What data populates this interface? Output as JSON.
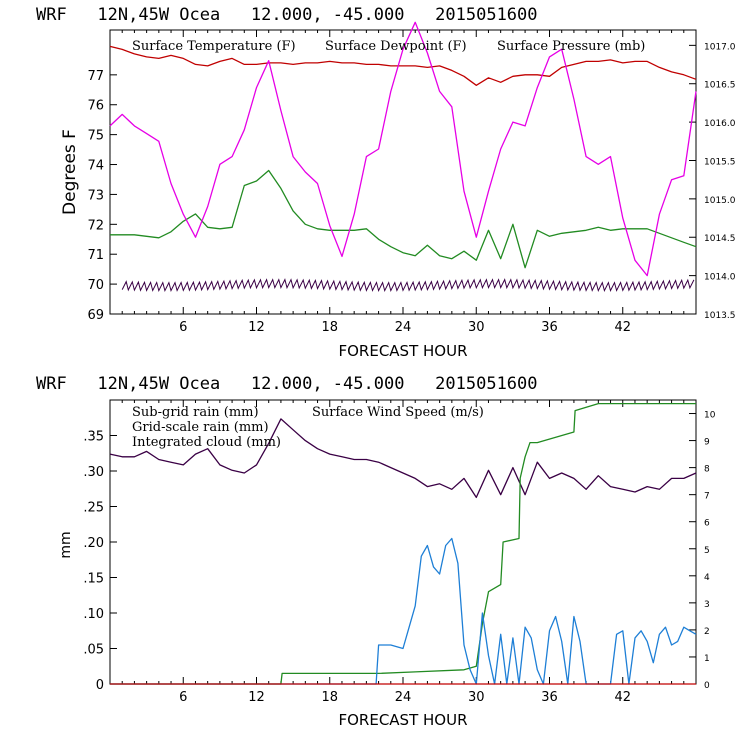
{
  "colors": {
    "temperature": "#c00000",
    "dewpoint": "#228b22",
    "pressure": "#e600e6",
    "wind": "#3a0045",
    "grid_rain": "#228b22",
    "cloud": "#1e7fd6",
    "subgrid_rain": "#c00000"
  },
  "chart_data": [
    {
      "type": "line",
      "title": "WRF   12N,45W Ocea   12.000, -45.000   2015051600",
      "xlabel": "FORECAST HOUR",
      "ylabel": "Degrees F",
      "xlim": [
        0,
        48
      ],
      "ylim": [
        69,
        78.5
      ],
      "y_ticks": [
        69,
        70,
        71,
        72,
        73,
        74,
        75,
        76,
        77
      ],
      "x_ticks": [
        6,
        12,
        18,
        24,
        30,
        36,
        42
      ],
      "right_axis": {
        "ticks": [
          "1013.5",
          "1014.0",
          "1014.5",
          "1015.0",
          "1015.5",
          "1016.0",
          "1016.5",
          "1017.0"
        ],
        "ylim": [
          1013.5,
          1017.2
        ]
      },
      "legend": [
        "Surface Temperature (F)",
        "Surface Dewpoint (F)",
        "Surface Pressure (mb)"
      ],
      "series": [
        {
          "name": "Surface Temperature (F)",
          "axis": "left",
          "x": [
            0,
            1,
            2,
            3,
            4,
            5,
            6,
            7,
            8,
            9,
            10,
            11,
            12,
            13,
            14,
            15,
            16,
            17,
            18,
            19,
            20,
            21,
            22,
            23,
            24,
            25,
            26,
            27,
            28,
            29,
            30,
            31,
            32,
            33,
            34,
            35,
            36,
            37,
            38,
            39,
            40,
            41,
            42,
            43,
            44,
            45,
            46,
            47,
            48
          ],
          "values": [
            77.95,
            77.85,
            77.7,
            77.6,
            77.55,
            77.65,
            77.55,
            77.35,
            77.3,
            77.45,
            77.55,
            77.35,
            77.35,
            77.4,
            77.4,
            77.35,
            77.4,
            77.4,
            77.45,
            77.4,
            77.4,
            77.35,
            77.35,
            77.3,
            77.3,
            77.3,
            77.25,
            77.3,
            77.15,
            76.95,
            76.65,
            76.9,
            76.75,
            76.95,
            77.0,
            77.0,
            76.95,
            77.25,
            77.35,
            77.45,
            77.45,
            77.5,
            77.4,
            77.45,
            77.45,
            77.25,
            77.1,
            77.0,
            76.85
          ]
        },
        {
          "name": "Surface Dewpoint (F)",
          "axis": "left",
          "x": [
            0,
            1,
            2,
            3,
            4,
            5,
            6,
            7,
            8,
            9,
            10,
            11,
            12,
            13,
            14,
            15,
            16,
            17,
            18,
            19,
            20,
            21,
            22,
            23,
            24,
            25,
            26,
            27,
            28,
            29,
            30,
            31,
            32,
            33,
            34,
            35,
            36,
            37,
            38,
            39,
            40,
            41,
            42,
            43,
            44,
            45,
            46,
            47,
            48
          ],
          "values": [
            71.65,
            71.65,
            71.65,
            71.6,
            71.55,
            71.75,
            72.1,
            72.35,
            71.9,
            71.85,
            71.9,
            73.3,
            73.45,
            73.8,
            73.2,
            72.45,
            72.0,
            71.85,
            71.8,
            71.8,
            71.8,
            71.85,
            71.5,
            71.25,
            71.05,
            70.95,
            71.3,
            70.95,
            70.85,
            71.1,
            70.8,
            71.8,
            70.85,
            72.0,
            70.55,
            71.8,
            71.6,
            71.7,
            71.75,
            71.8,
            71.9,
            71.8,
            71.85,
            71.85,
            71.85,
            71.7,
            71.55,
            71.4,
            71.25
          ]
        },
        {
          "name": "Surface Pressure (mb)",
          "axis": "right",
          "x": [
            0,
            1,
            2,
            3,
            4,
            5,
            6,
            7,
            8,
            9,
            10,
            11,
            12,
            13,
            14,
            15,
            16,
            17,
            18,
            19,
            20,
            21,
            22,
            23,
            24,
            25,
            26,
            27,
            28,
            29,
            30,
            31,
            32,
            33,
            34,
            35,
            36,
            37,
            38,
            39,
            40,
            41,
            42,
            43,
            44,
            45,
            46,
            47,
            48
          ],
          "values": [
            1015.95,
            1016.1,
            1015.95,
            1015.85,
            1015.75,
            1015.2,
            1014.8,
            1014.5,
            1014.9,
            1015.45,
            1015.55,
            1015.9,
            1016.45,
            1016.8,
            1016.15,
            1015.55,
            1015.35,
            1015.2,
            1014.65,
            1014.25,
            1014.8,
            1015.55,
            1015.65,
            1016.4,
            1016.95,
            1017.3,
            1016.9,
            1016.4,
            1016.2,
            1015.1,
            1014.5,
            1015.1,
            1015.65,
            1016.0,
            1015.95,
            1016.45,
            1016.85,
            1016.95,
            1016.3,
            1015.55,
            1015.45,
            1015.55,
            1014.75,
            1014.2,
            1014.0,
            1014.8,
            1015.25,
            1015.3,
            1016.4
          ]
        }
      ]
    },
    {
      "type": "line",
      "title": "WRF   12N,45W Ocea   12.000, -45.000   2015051600",
      "xlabel": "FORECAST HOUR",
      "ylabel": "mm",
      "xlim": [
        0,
        48
      ],
      "ylim": [
        0,
        0.4
      ],
      "y_ticks": [
        0,
        0.05,
        0.1,
        0.15,
        0.2,
        0.25,
        0.3,
        0.35
      ],
      "y_tick_labels": [
        "0",
        ".05",
        ".10",
        ".15",
        ".20",
        ".25",
        ".30",
        ".35"
      ],
      "x_ticks": [
        6,
        12,
        18,
        24,
        30,
        36,
        42
      ],
      "right_axis": {
        "ticks": [
          "0",
          "1",
          "2",
          "3",
          "4",
          "5",
          "6",
          "7",
          "8",
          "9",
          "10"
        ],
        "ylim": [
          0,
          10.5
        ]
      },
      "legend": [
        "Sub-grid rain (mm)",
        "Grid-scale rain (mm)",
        "Integrated cloud (mm)",
        "Surface Wind Speed (m/s)"
      ],
      "series": [
        {
          "name": "Surface Wind Speed (m/s)",
          "axis": "right",
          "x": [
            0,
            1,
            2,
            3,
            4,
            5,
            6,
            7,
            8,
            9,
            10,
            11,
            12,
            13,
            14,
            15,
            16,
            17,
            18,
            19,
            20,
            21,
            22,
            23,
            24,
            25,
            26,
            27,
            28,
            29,
            30,
            31,
            32,
            33,
            34,
            35,
            36,
            37,
            38,
            39,
            40,
            41,
            42,
            43,
            44,
            45,
            46,
            47,
            48
          ],
          "values": [
            8.5,
            8.4,
            8.4,
            8.6,
            8.3,
            8.2,
            8.1,
            8.5,
            8.7,
            8.1,
            7.9,
            7.8,
            8.1,
            8.9,
            9.8,
            9.4,
            9.0,
            8.7,
            8.5,
            8.4,
            8.3,
            8.3,
            8.2,
            8.0,
            7.8,
            7.6,
            7.3,
            7.4,
            7.2,
            7.6,
            6.9,
            7.9,
            7.0,
            8.0,
            7.0,
            8.2,
            7.6,
            7.8,
            7.6,
            7.2,
            7.7,
            7.3,
            7.2,
            7.1,
            7.3,
            7.2,
            7.6,
            7.6,
            7.8
          ]
        },
        {
          "name": "Grid-scale rain (mm)",
          "axis": "left",
          "x": [
            0,
            14,
            14.1,
            22,
            25,
            29,
            30,
            30.5,
            31,
            32,
            32.2,
            33.5,
            33.6,
            34,
            34.4,
            35,
            38,
            38.1,
            40,
            48
          ],
          "values": [
            0,
            0,
            0.015,
            0.015,
            0.017,
            0.02,
            0.025,
            0.085,
            0.13,
            0.14,
            0.2,
            0.205,
            0.29,
            0.32,
            0.34,
            0.34,
            0.355,
            0.385,
            0.395,
            0.395
          ]
        },
        {
          "name": "Integrated cloud (mm)",
          "axis": "left",
          "x": [
            0,
            21.8,
            22,
            23,
            24,
            25,
            25.5,
            26,
            26.5,
            27,
            27.5,
            28,
            28.5,
            29,
            29.5,
            30,
            30.5,
            31,
            31.5,
            32,
            32.5,
            33,
            33.5,
            34,
            34.5,
            35,
            35.5,
            36,
            36.5,
            37,
            37.5,
            38,
            38.5,
            39,
            40,
            41,
            41.5,
            42,
            42.5,
            43,
            43.5,
            44,
            44.5,
            45,
            45.5,
            46,
            46.5,
            47,
            47.5,
            48
          ],
          "values": [
            0,
            0,
            0.055,
            0.055,
            0.05,
            0.11,
            0.18,
            0.195,
            0.165,
            0.155,
            0.195,
            0.205,
            0.17,
            0.055,
            0.02,
            0.0,
            0.1,
            0.04,
            0.0,
            0.07,
            0.0,
            0.065,
            0.0,
            0.08,
            0.065,
            0.02,
            0.0,
            0.075,
            0.095,
            0.06,
            0.0,
            0.095,
            0.06,
            0.0,
            0.0,
            0.0,
            0.07,
            0.075,
            0.0,
            0.065,
            0.075,
            0.06,
            0.03,
            0.07,
            0.08,
            0.055,
            0.06,
            0.08,
            0.075,
            0.07
          ]
        },
        {
          "name": "Sub-grid rain (mm)",
          "axis": "left",
          "x": [
            0,
            48
          ],
          "values": [
            0,
            0
          ]
        }
      ]
    }
  ]
}
